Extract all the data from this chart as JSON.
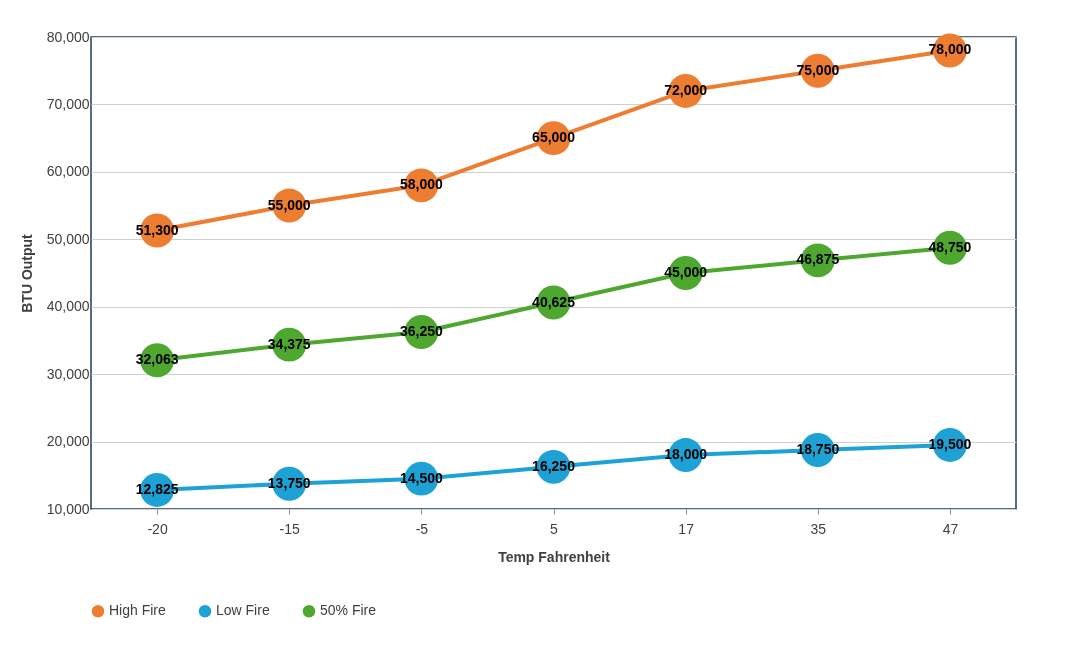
{
  "chart_data": {
    "type": "line",
    "xlabel": "Temp Fahrenheit",
    "ylabel": "BTU Output",
    "categories": [
      "-20",
      "-15",
      "-5",
      "5",
      "17",
      "35",
      "47"
    ],
    "series": [
      {
        "name": "High Fire",
        "color": "#ed7d31",
        "values": [
          51300,
          55000,
          58000,
          65000,
          72000,
          75000,
          78000
        ],
        "value_labels": [
          "51,300",
          "55,000",
          "58,000",
          "65,000",
          "72,000",
          "75,000",
          "78,000"
        ]
      },
      {
        "name": "Low Fire",
        "color": "#1ea2d6",
        "values": [
          12825,
          13750,
          14500,
          16250,
          18000,
          18750,
          19500
        ],
        "value_labels": [
          "12,825",
          "13,750",
          "14,500",
          "16,250",
          "18,000",
          "18,750",
          "19,500"
        ]
      },
      {
        "name": "50% Fire",
        "color": "#4ea72e",
        "values": [
          32063,
          34375,
          36250,
          40625,
          45000,
          46875,
          48750
        ],
        "value_labels": [
          "32,063",
          "34,375",
          "36,250",
          "40,625",
          "45,000",
          "46,875",
          "48,750"
        ]
      }
    ],
    "ylim": [
      10000,
      80000
    ],
    "yticks": [
      {
        "value": 10000,
        "label": "10,000"
      },
      {
        "value": 20000,
        "label": "20,000"
      },
      {
        "value": 30000,
        "label": "30,000"
      },
      {
        "value": 40000,
        "label": "40,000"
      },
      {
        "value": 50000,
        "label": "50,000"
      },
      {
        "value": 60000,
        "label": "60,000"
      },
      {
        "value": 70000,
        "label": "70,000"
      },
      {
        "value": 80000,
        "label": "80,000"
      }
    ],
    "grid": "y",
    "legend": "bottom",
    "marker": "circle",
    "line_style": "solid"
  }
}
